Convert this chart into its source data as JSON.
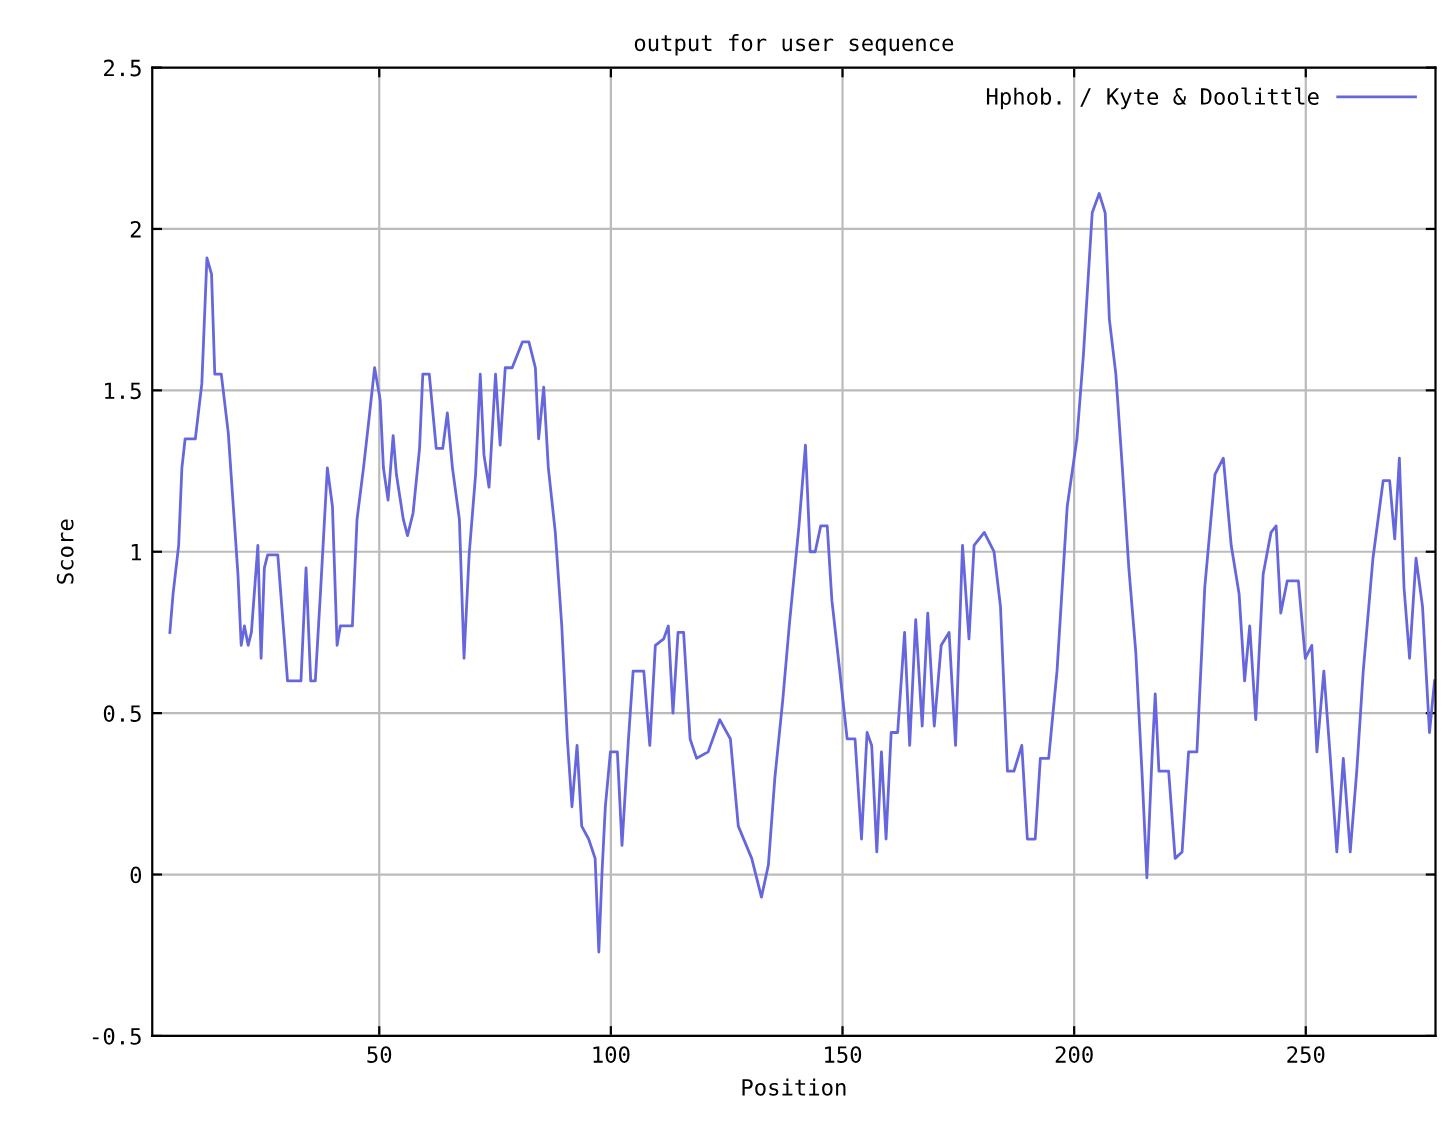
{
  "chart_data": {
    "type": "line",
    "title": "output for user sequence",
    "xlabel": "Position",
    "ylabel": "Score",
    "xlim": [
      1,
      278
    ],
    "ylim": [
      -0.5,
      2.5
    ],
    "xticks": [
      50,
      100,
      150,
      200,
      250
    ],
    "yticks": [
      -0.5,
      0,
      0.5,
      1,
      1.5,
      2,
      2.5
    ],
    "grid": true,
    "legend": "top right",
    "marker": "none",
    "line_style": "solid",
    "series": [
      {
        "name": "Hphob. / Kyte & Doolittle",
        "color": "#6666dd",
        "x": [
          4.8,
          5.5,
          6.7,
          7.4,
          8.1,
          10.3,
          11.7,
          12.8,
          13.8,
          14.5,
          15.9,
          17.4,
          18.5,
          19.5,
          20.2,
          20.9,
          21.7,
          22.4,
          23.8,
          24.5,
          25.2,
          25.9,
          28.1,
          29.5,
          30.2,
          33.1,
          34.2,
          35.2,
          36.2,
          37.3,
          38.8,
          39.9,
          40.9,
          41.6,
          44.2,
          45.2,
          46.6,
          47.7,
          49.0,
          50.2,
          50.9,
          51.9,
          53.0,
          53.7,
          55.2,
          56.1,
          57.3,
          58.7,
          59.4,
          60.8,
          62.3,
          63.7,
          64.7,
          65.8,
          67.3,
          68.3,
          69.4,
          70.8,
          71.8,
          72.6,
          73.7,
          75.1,
          76.1,
          77.2,
          78.7,
          80.9,
          82.3,
          83.7,
          84.4,
          85.5,
          86.5,
          88.0,
          89.4,
          90.6,
          91.6,
          92.7,
          93.7,
          95.2,
          96.6,
          97.4,
          98.1,
          98.8,
          99.9,
          101.4,
          102.4,
          103.8,
          104.8,
          107.1,
          108.4,
          109.6,
          111.4,
          112.4,
          113.4,
          114.5,
          115.7,
          117.1,
          118.5,
          121.0,
          123.5,
          125.8,
          127.5,
          130.4,
          132.5,
          134.0,
          135.4,
          137.1,
          138.5,
          140.6,
          142.0,
          143.0,
          144.1,
          145.3,
          146.7,
          147.7,
          149.1,
          151.0,
          152.7,
          154.1,
          155.3,
          156.3,
          157.4,
          158.4,
          159.4,
          160.5,
          161.9,
          163.4,
          164.5,
          165.8,
          167.2,
          168.4,
          169.8,
          171.3,
          173.0,
          174.4,
          175.9,
          177.3,
          178.4,
          180.6,
          182.7,
          184.1,
          185.6,
          187.0,
          188.7,
          189.9,
          191.6,
          192.7,
          194.5,
          196.3,
          198.5,
          200.6,
          202.0,
          203.9,
          205.4,
          206.7,
          207.6,
          209.0,
          210.4,
          211.8,
          213.3,
          214.7,
          215.7,
          216.8,
          217.5,
          218.3,
          220.4,
          221.8,
          223.3,
          224.7,
          226.5,
          228.2,
          230.4,
          232.2,
          233.9,
          235.6,
          236.8,
          237.9,
          239.2,
          240.8,
          242.5,
          243.6,
          244.6,
          246.0,
          248.4,
          249.9,
          251.3,
          252.4,
          253.9,
          255.3,
          256.7,
          258.1,
          259.6,
          261.0,
          262.4,
          264.5,
          266.7,
          268.1,
          269.2,
          270.2,
          271.2,
          272.4,
          273.8,
          275.2,
          276.7,
          277.8
        ],
        "values": [
          0.75,
          0.87,
          1.02,
          1.26,
          1.35,
          1.35,
          1.52,
          1.91,
          1.86,
          1.55,
          1.55,
          1.37,
          1.14,
          0.93,
          0.71,
          0.77,
          0.71,
          0.75,
          1.02,
          0.67,
          0.95,
          0.99,
          0.99,
          0.73,
          0.6,
          0.6,
          0.95,
          0.6,
          0.6,
          0.87,
          1.26,
          1.14,
          0.71,
          0.77,
          0.77,
          1.1,
          1.26,
          1.4,
          1.57,
          1.47,
          1.26,
          1.16,
          1.36,
          1.24,
          1.1,
          1.05,
          1.12,
          1.32,
          1.55,
          1.55,
          1.32,
          1.32,
          1.43,
          1.26,
          1.1,
          0.67,
          0.99,
          1.24,
          1.55,
          1.3,
          1.2,
          1.55,
          1.33,
          1.57,
          1.57,
          1.65,
          1.65,
          1.57,
          1.35,
          1.51,
          1.26,
          1.06,
          0.77,
          0.42,
          0.21,
          0.4,
          0.15,
          0.11,
          0.05,
          -0.24,
          0.01,
          0.21,
          0.38,
          0.38,
          0.09,
          0.42,
          0.63,
          0.63,
          0.4,
          0.71,
          0.73,
          0.77,
          0.5,
          0.75,
          0.75,
          0.42,
          0.36,
          0.38,
          0.48,
          0.42,
          0.15,
          0.05,
          -0.07,
          0.03,
          0.3,
          0.54,
          0.77,
          1.08,
          1.33,
          1.0,
          1.0,
          1.08,
          1.08,
          0.85,
          0.67,
          0.42,
          0.42,
          0.11,
          0.44,
          0.4,
          0.07,
          0.38,
          0.11,
          0.44,
          0.44,
          0.75,
          0.4,
          0.79,
          0.46,
          0.81,
          0.46,
          0.71,
          0.75,
          0.4,
          1.02,
          0.73,
          1.02,
          1.06,
          1.0,
          0.83,
          0.32,
          0.32,
          0.4,
          0.11,
          0.11,
          0.36,
          0.36,
          0.63,
          1.14,
          1.35,
          1.61,
          2.05,
          2.11,
          2.05,
          1.72,
          1.55,
          1.26,
          0.95,
          0.69,
          0.3,
          -0.01,
          0.36,
          0.56,
          0.32,
          0.32,
          0.05,
          0.07,
          0.38,
          0.38,
          0.89,
          1.24,
          1.29,
          1.02,
          0.87,
          0.6,
          0.77,
          0.48,
          0.93,
          1.06,
          1.08,
          0.81,
          0.91,
          0.91,
          0.67,
          0.71,
          0.38,
          0.63,
          0.36,
          0.07,
          0.36,
          0.07,
          0.32,
          0.63,
          0.98,
          1.22,
          1.22,
          1.04,
          1.29,
          0.89,
          0.67,
          0.98,
          0.83,
          0.44,
          0.6
        ]
      }
    ]
  }
}
